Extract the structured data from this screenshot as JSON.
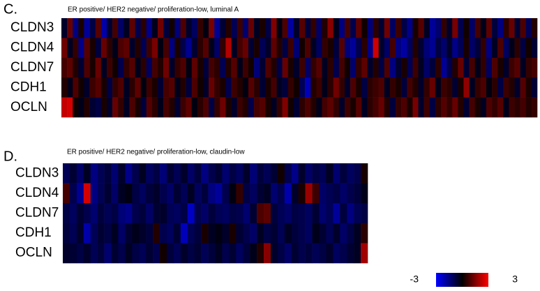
{
  "chart_data": [
    {
      "type": "heatmap",
      "panel": "C.",
      "title": "ER positive/ HER2 negative/ proliferation-low, luminal A",
      "rows": [
        "CLDN3",
        "CLDN4",
        "CLDN7",
        "CDH1",
        "OCLN"
      ],
      "values": [
        [
          -0.5,
          1.2,
          -1.5,
          0.3,
          -1.8,
          -0.8,
          1.0,
          -2.0,
          -0.6,
          0.8,
          -1.2,
          -0.4,
          1.1,
          -0.9,
          0.5,
          -1.6,
          -0.3,
          1.3,
          -0.7,
          0.2,
          -1.4,
          0.9,
          -0.5,
          -1.1,
          0.6,
          -0.2,
          1.4,
          -1.7,
          -0.6,
          0.4,
          -1.0,
          0.7,
          -1.3,
          1.2,
          -0.4,
          0.3,
          -0.8,
          1.5,
          -0.2,
          0.9,
          -1.9,
          -0.5,
          1.0,
          -0.7,
          0.6,
          -1.2,
          0.4,
          1.6,
          -0.3,
          -1.5,
          0.8,
          -0.9,
          1.1,
          0.2,
          -1.4,
          0.5,
          -0.6,
          1.3,
          -1.1,
          0.7,
          -0.8,
          -1.6,
          0.3,
          1.0,
          -0.4,
          -1.8,
          -1.3,
          0.6,
          -0.5,
          1.4,
          -0.9,
          0.2,
          -1.2,
          0.8,
          -0.3,
          1.1,
          -0.7,
          -1.5,
          0.5,
          1.2,
          -0.6,
          0.9,
          -1.0,
          0.4
        ],
        [
          1.3,
          -0.4,
          0.6,
          -1.6,
          1.0,
          0.3,
          -0.7,
          1.2,
          0.5,
          -0.3,
          0.9,
          1.1,
          -0.5,
          0.4,
          -1.0,
          0.7,
          1.4,
          -0.2,
          0.8,
          -1.5,
          0.3,
          -0.9,
          -1.7,
          -0.6,
          0.5,
          1.0,
          -0.3,
          -1.2,
          0.6,
          2.1,
          -0.4,
          0.8,
          1.2,
          -0.6,
          0.3,
          -1.0,
          -0.5,
          1.1,
          0.4,
          -0.8,
          0.7,
          -1.3,
          0.2,
          0.9,
          -0.4,
          -1.1,
          0.6,
          0.3,
          -0.7,
          1.0,
          -1.4,
          -1.8,
          -0.9,
          0.5,
          -1.6,
          2.4,
          -0.5,
          -1.2,
          0.8,
          -1.5,
          -1.9,
          -1.1,
          0.4,
          -0.6,
          -1.4,
          -1.7,
          -0.8,
          -1.3,
          -0.5,
          -1.6,
          -1.0,
          0.3,
          -1.2,
          -0.7,
          0.6,
          -1.5,
          -0.4,
          0.9,
          -1.1,
          -0.3,
          0.5,
          -0.8,
          0.2,
          -0.6
        ],
        [
          0.8,
          1.1,
          0.4,
          -0.6,
          0.9,
          0.3,
          1.2,
          -0.4,
          0.7,
          0.2,
          -0.9,
          0.6,
          1.0,
          -0.3,
          0.5,
          -1.1,
          0.8,
          0.4,
          1.3,
          -0.5,
          0.6,
          0.9,
          -0.2,
          1.1,
          0.3,
          -0.7,
          0.8,
          0.5,
          -1.0,
          0.4,
          1.0,
          -0.3,
          0.7,
          0.2,
          -1.4,
          -0.6,
          0.9,
          0.4,
          -0.8,
          1.2,
          0.3,
          -0.5,
          0.7,
          -1.2,
          0.6,
          1.0,
          -0.4,
          0.5,
          -0.9,
          0.8,
          0.2,
          -1.3,
          0.6,
          1.1,
          -0.5,
          0.4,
          -0.8,
          0.9,
          -1.5,
          -0.6,
          0.3,
          -1.0,
          0.7,
          -0.4,
          -1.2,
          -0.7,
          0.5,
          -1.8,
          -0.9,
          0.4,
          1.2,
          -0.6,
          0.8,
          -0.3,
          0.6,
          -1.1,
          0.9,
          0.3,
          -0.5,
          0.7,
          1.0,
          -0.4,
          0.6,
          0.8
        ],
        [
          0.4,
          -0.3,
          0.9,
          0.2,
          -0.5,
          0.7,
          1.0,
          0.3,
          -0.8,
          0.6,
          0.9,
          -0.4,
          0.5,
          1.1,
          -0.2,
          0.7,
          0.3,
          -0.6,
          0.8,
          1.0,
          -0.3,
          0.4,
          -0.7,
          0.9,
          0.2,
          -0.5,
          1.2,
          0.6,
          0.3,
          -0.9,
          0.7,
          0.4,
          -0.2,
          1.0,
          0.5,
          -0.6,
          0.3,
          0.8,
          -0.4,
          -0.7,
          0.6,
          0.2,
          -1.0,
          -2.2,
          0.4,
          0.7,
          -0.3,
          0.5,
          1.3,
          0.6,
          -0.5,
          0.9,
          0.3,
          -0.8,
          0.5,
          0.7,
          0.9,
          -0.4,
          0.6,
          0.3,
          -0.7,
          0.8,
          0.4,
          -0.5,
          0.6,
          1.2,
          -0.3,
          0.7,
          0.5,
          -0.6,
          0.3,
          1.7,
          -0.4,
          0.6,
          0.9,
          -0.2,
          0.5,
          -0.8,
          0.7,
          0.4,
          -0.5,
          1.0,
          0.3,
          -0.6
        ],
        [
          2.3,
          2.5,
          0.2,
          -0.3,
          0.4,
          -0.6,
          -0.8,
          0.3,
          -0.5,
          1.2,
          0.6,
          -0.4,
          0.9,
          0.3,
          -0.7,
          1.0,
          0.5,
          -0.3,
          0.8,
          0.4,
          -0.6,
          0.7,
          1.1,
          -0.2,
          0.5,
          0.9,
          -0.8,
          0.6,
          1.3,
          0.3,
          -0.5,
          0.7,
          0.4,
          -0.9,
          0.8,
          1.0,
          0.3,
          -0.4,
          0.6,
          1.5,
          0.2,
          -0.6,
          0.5,
          0.9,
          0.4,
          -0.3,
          0.8,
          1.1,
          0.6,
          -0.5,
          0.7,
          0.3,
          1.0,
          -0.4,
          0.5,
          0.8,
          1.2,
          0.4,
          -0.7,
          0.6,
          0.9,
          0.3,
          1.4,
          -0.5,
          0.7,
          -0.8,
          0.5,
          1.0,
          0.6,
          1.2,
          0.4,
          -0.6,
          0.8,
          0.3,
          -0.4,
          0.9,
          0.6,
          1.0,
          -0.3,
          0.7,
          0.5,
          0.8,
          0.4,
          0.6
        ]
      ]
    },
    {
      "type": "heatmap",
      "panel": "D.",
      "title": "ER positive/ HER2 negative/ proliferation-low, claudin-low",
      "rows": [
        "CLDN3",
        "CLDN4",
        "CLDN7",
        "CDH1",
        "OCLN"
      ],
      "values": [
        [
          -1.0,
          -0.6,
          -1.2,
          -0.4,
          -1.5,
          -1.0,
          -0.7,
          -1.3,
          -0.5,
          -1.6,
          -0.9,
          -0.4,
          -1.1,
          -0.8,
          -1.4,
          -0.6,
          -1.0,
          -0.5,
          -1.2,
          -0.7,
          -1.5,
          -0.9,
          -0.6,
          -1.3,
          -0.8,
          -1.1,
          -0.5,
          -1.4,
          -0.7,
          -1.0,
          -0.6,
          0.2,
          -0.9,
          -1.6,
          -0.5,
          -1.2,
          -0.8,
          -1.0,
          -0.4,
          -1.3,
          -0.7,
          -1.1,
          -0.9,
          0.3
        ],
        [
          0.8,
          -0.9,
          -1.7,
          2.5,
          -1.5,
          -1.0,
          -0.6,
          -1.2,
          -0.4,
          -0.2,
          -0.8,
          -1.1,
          -0.7,
          -0.5,
          -0.9,
          -1.2,
          -0.6,
          -1.0,
          -0.4,
          -1.1,
          -0.7,
          -1.5,
          -1.8,
          -0.9,
          -0.2,
          0.6,
          -0.8,
          -1.1,
          -0.6,
          -0.4,
          -1.3,
          -0.9,
          -2.0,
          -0.5,
          0.3,
          1.8,
          0.7,
          -1.2,
          -1.0,
          -0.8,
          -1.2,
          -0.9,
          -0.7,
          -0.3
        ],
        [
          -0.8,
          -1.1,
          -0.6,
          -0.9,
          -1.3,
          -0.7,
          -1.0,
          -0.8,
          -1.4,
          -1.6,
          -0.9,
          -0.7,
          -1.2,
          -0.6,
          -0.5,
          -1.0,
          -1.1,
          -0.8,
          -2.3,
          -0.9,
          -1.2,
          -0.7,
          -1.0,
          -1.1,
          -0.8,
          -0.9,
          -1.3,
          -0.6,
          0.9,
          1.1,
          -0.7,
          -1.0,
          -1.2,
          -0.8,
          -0.9,
          -1.1,
          -0.6,
          -1.3,
          -1.0,
          -1.8,
          -0.7,
          -1.5,
          -1.0,
          -0.8
        ],
        [
          -0.7,
          -1.0,
          -0.5,
          -2.0,
          -1.0,
          -0.6,
          -0.8,
          -0.4,
          -1.2,
          -0.6,
          -0.3,
          -0.5,
          -0.7,
          0.4,
          -0.9,
          -1.1,
          -0.6,
          -2.2,
          -1.0,
          -0.7,
          0.3,
          -0.4,
          -0.2,
          -0.5,
          0.3,
          -0.6,
          -0.9,
          -1.2,
          -0.4,
          -0.8,
          -0.6,
          -1.0,
          -0.4,
          -0.7,
          -0.9,
          -1.1,
          -0.3,
          -0.6,
          -1.0,
          -0.5,
          -1.2,
          -0.8,
          -0.4,
          0.5
        ],
        [
          -0.5,
          -0.6,
          -0.8,
          -0.5,
          -1.0,
          -0.7,
          -1.3,
          -0.6,
          -0.9,
          -0.4,
          -0.8,
          -1.0,
          -0.6,
          -0.9,
          0.2,
          -0.7,
          -1.0,
          -0.5,
          -0.8,
          -0.6,
          -1.0,
          -0.7,
          -0.4,
          -0.9,
          -0.6,
          -1.1,
          -0.7,
          -0.3,
          0.4,
          1.6,
          -0.5,
          -0.8,
          -1.2,
          -0.6,
          -0.9,
          -0.7,
          -1.0,
          -0.8,
          -0.5,
          -1.1,
          -0.9,
          -0.6,
          -0.4,
          1.9
        ]
      ]
    }
  ],
  "colorbar": {
    "ticks": [
      -3,
      3
    ],
    "colorscale": [
      "#0000ff",
      "#000000",
      "#ff0000"
    ]
  }
}
